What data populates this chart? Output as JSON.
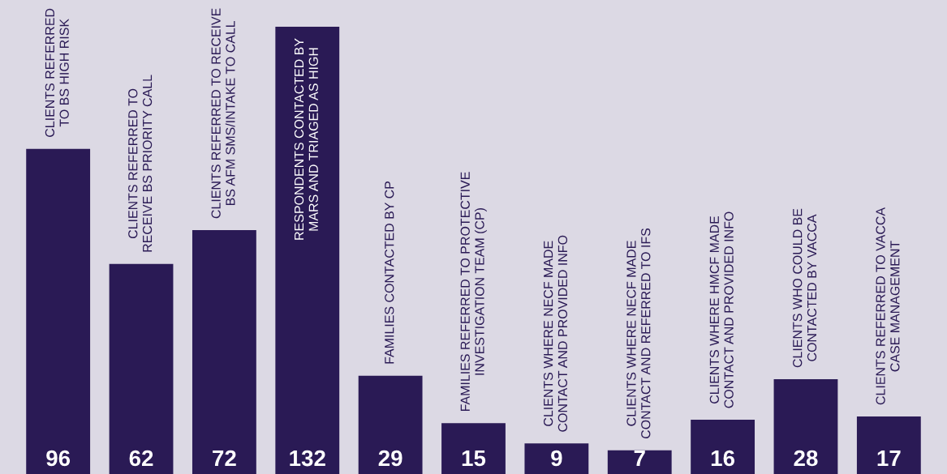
{
  "chart_data": {
    "type": "bar",
    "categories": [
      "CLIENTS REFERRED\nTO BS HIGH RISK",
      "CLIENTS REFERRED TO\nRECEIVE BS PRIORITY CALL",
      "CLIENTS REFERRED TO RECEIVE\nBS AFM SMS/INTAKE TO CALL",
      "RESPONDENTS CONTACTED BY\nMARS AND TRIAGED AS HIGH",
      "FAMILIES CONTACTED BY CP",
      "FAMILIES REFERRED TO PROTECTIVE\nINVESTIGATION TEAM (CP)",
      "CLIENTS WHERE NECF MADE\nCONTACT AND PROVIDED INFO",
      "CLIENTS WHERE NECF MADE\nCONTACT AND REFERRED TO IFS",
      "CLIENTS WHERE HMCF MADE\nCONTACT AND PROVIDED INFO",
      "CLIENTS WHO COULD BE\nCONTACTED BY VACCA",
      "CLIENTS REFERRED TO VACCA\nCASE MANAGEMENT"
    ],
    "values": [
      96,
      62,
      72,
      132,
      29,
      15,
      9,
      7,
      16,
      28,
      17
    ],
    "color": "#2a1a55",
    "data_labels": true
  }
}
